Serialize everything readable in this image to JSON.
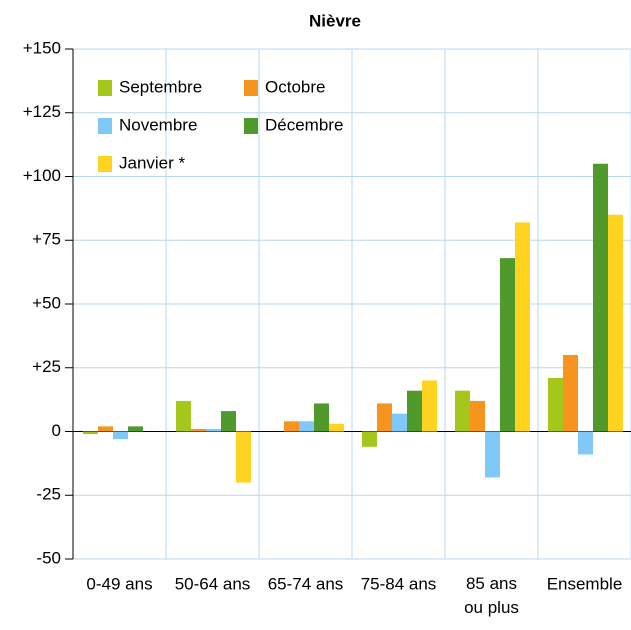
{
  "chart_data": {
    "type": "bar",
    "title": "Nièvre",
    "categories": [
      "0-49 ans",
      "50-64 ans",
      "65-74 ans",
      "75-84 ans",
      "85 ans\nou plus",
      "Ensemble"
    ],
    "series": [
      {
        "name": "Septembre",
        "color": "#a5c61a",
        "values": [
          -1,
          12,
          0,
          -6,
          16,
          21
        ]
      },
      {
        "name": "Octobre",
        "color": "#f7941d",
        "values": [
          2,
          1,
          4,
          11,
          12,
          30
        ]
      },
      {
        "name": "Novembre",
        "color": "#80c8f8",
        "values": [
          -3,
          1,
          4,
          7,
          -18,
          -9
        ]
      },
      {
        "name": "Décembre",
        "color": "#4f9a2a",
        "values": [
          2,
          8,
          11,
          16,
          68,
          105
        ]
      },
      {
        "name": "Janvier *",
        "color": "#ffd320",
        "values": [
          0,
          -20,
          3,
          20,
          82,
          85
        ]
      }
    ],
    "ylim": [
      -50,
      150
    ],
    "yticks": [
      -50,
      -25,
      0,
      {
        "value": 25,
        "label": "+25"
      },
      {
        "value": 50,
        "label": "+50"
      },
      {
        "value": 75,
        "label": "+75"
      },
      {
        "value": 100,
        "label": "+100"
      },
      {
        "value": 125,
        "label": "+125"
      },
      {
        "value": 150,
        "label": "+150"
      }
    ],
    "grid": true,
    "legend": "upper left"
  }
}
